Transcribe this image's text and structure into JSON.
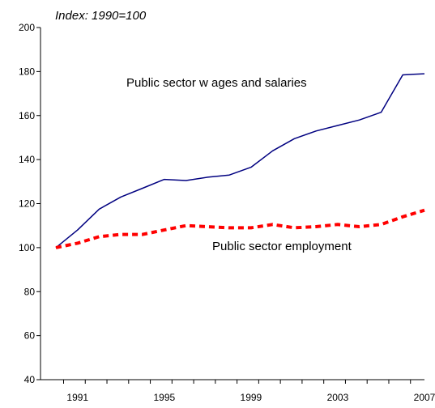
{
  "chart_data": {
    "type": "line",
    "unit_label": "Index: 1990=100",
    "x": [
      1990,
      1991,
      1992,
      1993,
      1994,
      1995,
      1996,
      1997,
      1998,
      1999,
      2000,
      2001,
      2002,
      2003,
      2004,
      2005,
      2006,
      2007
    ],
    "x_tick_labels": [
      "1991",
      "1995",
      "1999",
      "2003",
      "2007"
    ],
    "x_tick_values": [
      1991,
      1995,
      1999,
      2003,
      2007
    ],
    "ylim": [
      40,
      200
    ],
    "y_ticks": [
      40,
      60,
      80,
      100,
      120,
      140,
      160,
      180,
      200
    ],
    "grid": false,
    "series": [
      {
        "name": "Public sector w ages and salaries",
        "color": "#000080",
        "style": "solid",
        "values": [
          100,
          108,
          117.5,
          123,
          127,
          131,
          130.5,
          132,
          133,
          136.5,
          144,
          149.5,
          153,
          155.5,
          158,
          161.5,
          178.5,
          179
        ]
      },
      {
        "name": "Public sector employment",
        "color": "#ff0000",
        "style": "dashed",
        "values": [
          100,
          102,
          105,
          106,
          106,
          108,
          110,
          109.5,
          109,
          109,
          110.5,
          109,
          109.5,
          110.5,
          109.5,
          110.5,
          114,
          117
        ]
      }
    ]
  }
}
